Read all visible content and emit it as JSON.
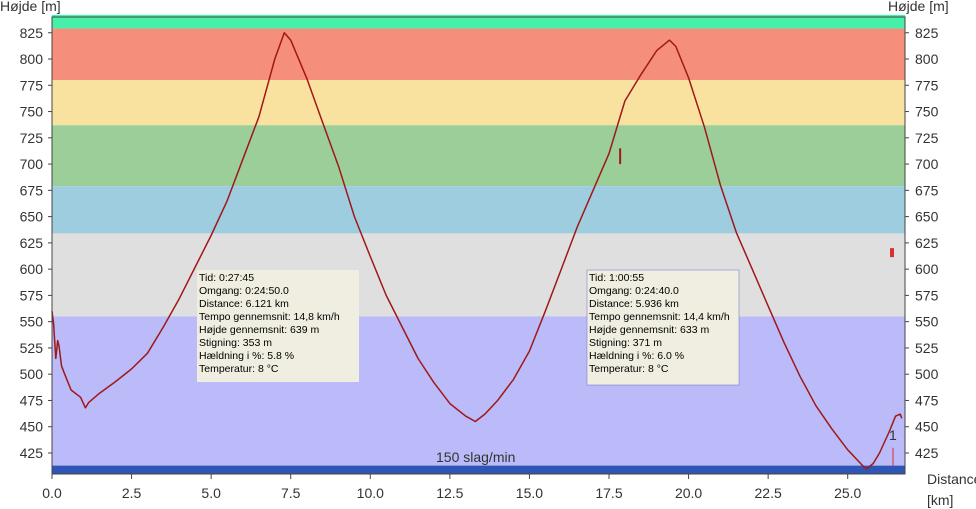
{
  "chart_data": {
    "type": "line",
    "ylabel": "Højde [m]",
    "xlabel": "Distance [km]",
    "xlim": [
      0,
      26.8
    ],
    "ylim": [
      405,
      840
    ],
    "x_ticks": [
      "0.0",
      "2.5",
      "5.0",
      "7.5",
      "10.0",
      "12.5",
      "15.0",
      "17.5",
      "20.0",
      "22.5",
      "25.0"
    ],
    "x_tick_values": [
      0,
      2.5,
      5,
      7.5,
      10,
      12.5,
      15,
      17.5,
      20,
      22.5,
      25
    ],
    "y_ticks": [
      "425",
      "450",
      "475",
      "500",
      "525",
      "550",
      "575",
      "600",
      "625",
      "650",
      "675",
      "700",
      "725",
      "750",
      "775",
      "800",
      "825"
    ],
    "y_tick_values": [
      425,
      450,
      475,
      500,
      525,
      550,
      575,
      600,
      625,
      650,
      675,
      700,
      725,
      750,
      775,
      800,
      825
    ],
    "zones": [
      {
        "from": 829,
        "to": 842,
        "color": "#46f0a8"
      },
      {
        "from": 780,
        "to": 829,
        "color": "#f58e7a"
      },
      {
        "from": 737,
        "to": 780,
        "color": "#f9e2a0"
      },
      {
        "from": 679,
        "to": 737,
        "color": "#9bce98"
      },
      {
        "from": 634,
        "to": 679,
        "color": "#9ecde0"
      },
      {
        "from": 555,
        "to": 634,
        "color": "#dfdfe0"
      },
      {
        "from": 413,
        "to": 555,
        "color": "#babbf8"
      },
      {
        "from": 405,
        "to": 413,
        "color": "#2f55b5"
      }
    ],
    "series": [
      {
        "color": "#a01818",
        "x": [
          0,
          0.05,
          0.12,
          0.18,
          0.22,
          0.3,
          0.4,
          0.6,
          0.9,
          1.05,
          1.15,
          1.5,
          2.0,
          2.5,
          3.0,
          3.5,
          4.0,
          4.5,
          5.0,
          5.5,
          6.0,
          6.5,
          7.0,
          7.3,
          7.5,
          8.0,
          8.5,
          9.0,
          9.5,
          10.0,
          10.5,
          11.0,
          11.5,
          12.0,
          12.5,
          13.0,
          13.3,
          13.6,
          14.0,
          14.5,
          15.0,
          15.5,
          16.0,
          16.5,
          17.0,
          17.5,
          17.8,
          18.0,
          18.5,
          19.0,
          19.4,
          19.6,
          20.0,
          20.5,
          21.0,
          21.5,
          22.0,
          22.5,
          23.0,
          23.5,
          24.0,
          24.5,
          25.0,
          25.5,
          25.6,
          25.8,
          26.0,
          26.3,
          26.5,
          26.65,
          26.7
        ],
        "y": [
          560,
          548,
          515,
          532,
          527,
          508,
          500,
          485,
          478,
          468,
          473,
          482,
          493,
          505,
          520,
          545,
          572,
          602,
          632,
          665,
          705,
          745,
          800,
          825,
          818,
          782,
          740,
          698,
          650,
          612,
          575,
          545,
          515,
          492,
          472,
          460,
          455,
          462,
          475,
          495,
          522,
          560,
          600,
          640,
          675,
          710,
          740,
          760,
          785,
          808,
          818,
          812,
          782,
          735,
          680,
          635,
          600,
          565,
          530,
          498,
          470,
          448,
          428,
          412,
          410,
          415,
          425,
          445,
          460,
          462,
          458
        ]
      }
    ],
    "spikes": [
      {
        "x": 17.85,
        "y_from": 700,
        "y_to": 715
      }
    ],
    "annotations": [
      {
        "lines": [
          "Tid: 0:27:45",
          "Omgang: 0:24:50.0",
          "Distance:  6.121 km",
          "Tempo gennemsnit: 14,8 km/h",
          "Højde gennemsnit:  639 m",
          "Stigning:  353 m",
          "Hældning i %: 5.8 %",
          "Temperatur: 8 °C"
        ]
      },
      {
        "lines": [
          "Tid: 1:00:55",
          "Omgang: 0:24:40.0",
          "Distance:  5.936 km",
          "Tempo gennemsnit: 14,4 km/h",
          "Højde gennemsnit:  633 m",
          "Stigning:  371 m",
          "Hældning i %: 6.0 %",
          "Temperatur: 8 °C"
        ]
      }
    ],
    "hr_band_label": "150 slag/min",
    "marker_label": "1",
    "grid": false
  }
}
